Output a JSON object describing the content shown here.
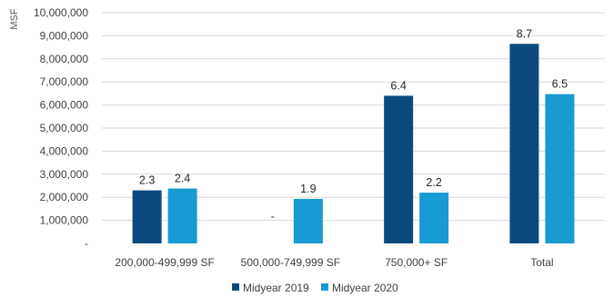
{
  "chart_data": {
    "type": "bar",
    "ylabel": "MSF",
    "ylim": [
      0,
      10000000
    ],
    "y_ticks": [
      "-",
      "1,000,000",
      "2,000,000",
      "3,000,000",
      "4,000,000",
      "5,000,000",
      "6,000,000",
      "7,000,000",
      "8,000,000",
      "9,000,000",
      "10,000,000"
    ],
    "categories": [
      "200,000-499,999 SF",
      "500,000-749,999 SF",
      "750,000+ SF",
      "Total"
    ],
    "series": [
      {
        "name": "Midyear 2019",
        "color": "#0b4a7f",
        "values": [
          2300000,
          0,
          6400000,
          8650000
        ],
        "labels": [
          "2.3",
          "-",
          "6.4",
          "8.7"
        ]
      },
      {
        "name": "Midyear 2020",
        "color": "#189ad3",
        "values": [
          2380000,
          1930000,
          2200000,
          6470000
        ],
        "labels": [
          "2.4",
          "1.9",
          "2.2",
          "6.5"
        ]
      }
    ],
    "grid": true,
    "legend_position": "bottom"
  }
}
